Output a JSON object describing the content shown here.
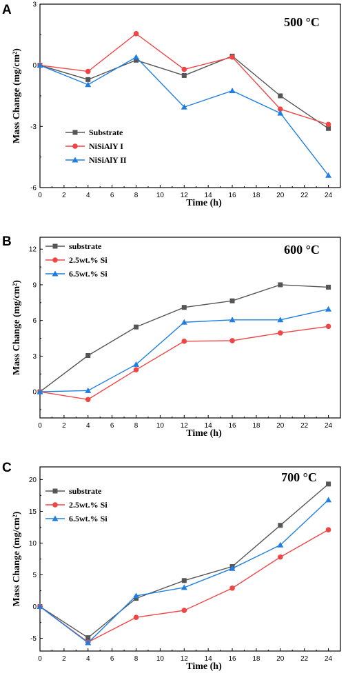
{
  "chart_data": [
    {
      "type": "line",
      "panel_label": "A",
      "annotation": "500 °C",
      "xlabel": "Time (h)",
      "ylabel": "Mass Change (mg/cm²)",
      "x": [
        0,
        4,
        8,
        12,
        16,
        20,
        24
      ],
      "xlim": [
        0,
        25
      ],
      "ylim": [
        -6,
        3
      ],
      "xticks": [
        "0",
        "2",
        "4",
        "6",
        "8",
        "10",
        "12",
        "14",
        "16",
        "18",
        "20",
        "22",
        "24"
      ],
      "yticks": [
        "-6",
        "-3",
        "0",
        "3"
      ],
      "legend_position": "bottom-left",
      "series": [
        {
          "name": "Substrate",
          "color": "#555555",
          "marker": "square",
          "values": [
            0,
            -0.7,
            0.25,
            -0.5,
            0.45,
            -1.5,
            -3.1
          ]
        },
        {
          "name": "NiSiAlY I",
          "color": "#f04545",
          "marker": "circle",
          "values": [
            0,
            -0.3,
            1.55,
            -0.2,
            0.4,
            -2.15,
            -2.9
          ]
        },
        {
          "name": "NiSiAlY II",
          "color": "#1e7fe0",
          "marker": "triangle",
          "values": [
            0,
            -0.95,
            0.4,
            -2.05,
            -1.25,
            -2.35,
            -5.4
          ]
        }
      ]
    },
    {
      "type": "line",
      "panel_label": "B",
      "annotation": "600 °C",
      "xlabel": "Time (h)",
      "ylabel": "Mass Change (mg/cm²)",
      "x": [
        0,
        4,
        8,
        12,
        16,
        20,
        24
      ],
      "xlim": [
        0,
        25
      ],
      "ylim": [
        -2.2,
        13
      ],
      "xticks": [
        "0",
        "2",
        "4",
        "6",
        "8",
        "10",
        "12",
        "14",
        "16",
        "18",
        "20",
        "22",
        "24"
      ],
      "yticks": [
        "0",
        "3",
        "6",
        "9",
        "12"
      ],
      "legend_position": "top-left",
      "series": [
        {
          "name": "substrate",
          "color": "#555555",
          "marker": "square",
          "values": [
            0,
            3.05,
            5.45,
            7.1,
            7.65,
            9.0,
            8.8
          ]
        },
        {
          "name": "2.5wt.% Si",
          "color": "#f04545",
          "marker": "circle",
          "values": [
            0,
            -0.65,
            1.85,
            4.25,
            4.3,
            4.95,
            5.5
          ]
        },
        {
          "name": "6.5wt.% Si",
          "color": "#1e7fe0",
          "marker": "triangle",
          "values": [
            0,
            0.1,
            2.3,
            5.85,
            6.05,
            6.05,
            6.95
          ]
        }
      ]
    },
    {
      "type": "line",
      "panel_label": "C",
      "annotation": "700 °C",
      "xlabel": "Time (h)",
      "ylabel": "Mass Change (mg/cm²)",
      "x": [
        0,
        4,
        8,
        12,
        16,
        20,
        24
      ],
      "xlim": [
        0,
        25
      ],
      "ylim": [
        -7,
        22
      ],
      "xticks": [
        "0",
        "2",
        "4",
        "6",
        "8",
        "10",
        "12",
        "14",
        "16",
        "18",
        "20",
        "22",
        "24"
      ],
      "yticks": [
        "-5",
        "0",
        "5",
        "10",
        "15",
        "20"
      ],
      "legend_position": "top-left",
      "series": [
        {
          "name": "substrate",
          "color": "#555555",
          "marker": "square",
          "values": [
            0,
            -4.9,
            1.3,
            4.1,
            6.3,
            12.8,
            19.3
          ]
        },
        {
          "name": "2.5wt.% Si",
          "color": "#f04545",
          "marker": "circle",
          "values": [
            0,
            -5.6,
            -1.7,
            -0.6,
            2.9,
            7.8,
            12.1
          ]
        },
        {
          "name": "6.5wt.% Si",
          "color": "#1e7fe0",
          "marker": "triangle",
          "values": [
            0,
            -5.7,
            1.7,
            3.0,
            6.0,
            9.7,
            16.8
          ]
        }
      ]
    }
  ]
}
